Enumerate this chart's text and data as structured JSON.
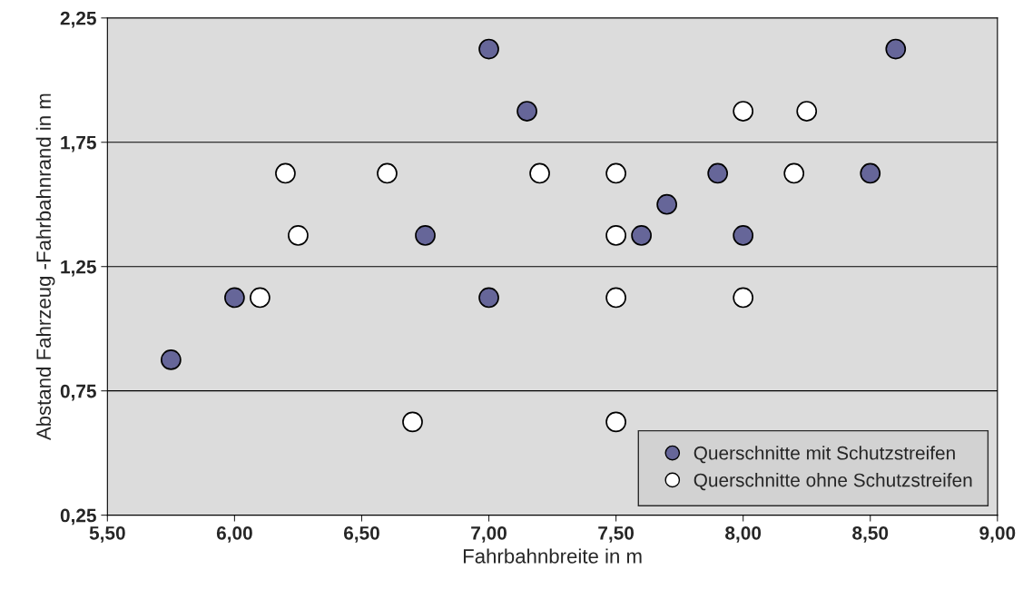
{
  "chart_data": {
    "type": "scatter",
    "xlabel": "Fahrbahnbreite in m",
    "ylabel": "Abstand Fahrzeug -Fahrbahnrand in m",
    "xlim": [
      5.5,
      9.0
    ],
    "ylim": [
      0.25,
      2.25
    ],
    "xticks": [
      {
        "value": 5.5,
        "label": "5,50"
      },
      {
        "value": 6.0,
        "label": "6,00"
      },
      {
        "value": 6.5,
        "label": "6,50"
      },
      {
        "value": 7.0,
        "label": "7,00"
      },
      {
        "value": 7.5,
        "label": "7,50"
      },
      {
        "value": 8.0,
        "label": "8,00"
      },
      {
        "value": 8.5,
        "label": "8,50"
      },
      {
        "value": 9.0,
        "label": "9,00"
      }
    ],
    "yticks": [
      {
        "value": 0.25,
        "label": "0,25"
      },
      {
        "value": 0.75,
        "label": "0,75"
      },
      {
        "value": 1.25,
        "label": "1,25"
      },
      {
        "value": 1.75,
        "label": "1,75"
      },
      {
        "value": 2.25,
        "label": "2,25"
      }
    ],
    "grid": "y",
    "legend": "bottom right",
    "marker": "circle",
    "series": [
      {
        "name": "Querschnitte mit Schutzstreifen",
        "color": "#666699",
        "x": [
          7.0,
          8.6,
          7.15,
          7.9,
          8.5,
          7.7,
          6.75,
          7.6,
          8.0,
          6.0,
          7.0,
          5.75
        ],
        "values": [
          2.125,
          2.125,
          1.875,
          1.625,
          1.625,
          1.5,
          1.375,
          1.375,
          1.375,
          1.125,
          1.125,
          0.875
        ]
      },
      {
        "name": "Querschnitte ohne Schutzstreifen",
        "color": "#ffffff",
        "x": [
          8.0,
          8.25,
          6.2,
          6.6,
          7.2,
          7.5,
          8.2,
          6.25,
          7.5,
          6.1,
          7.5,
          8.0,
          6.7,
          7.5
        ],
        "values": [
          1.875,
          1.875,
          1.625,
          1.625,
          1.625,
          1.625,
          1.625,
          1.375,
          1.375,
          1.125,
          1.125,
          1.125,
          0.625,
          0.625
        ]
      }
    ]
  }
}
